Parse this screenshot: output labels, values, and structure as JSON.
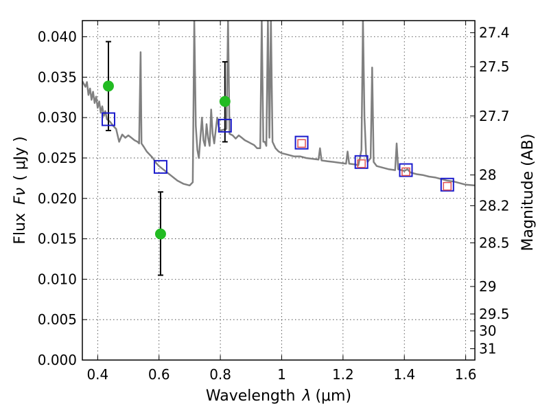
{
  "chart_data": {
    "type": "scatter",
    "title": "",
    "xlabel": "Wavelength",
    "xlabel_symbol": "λ",
    "xlabel_unit": "(μm)",
    "ylabel": "Flux",
    "ylabel_symbol": "Fν",
    "ylabel_unit": "( μJy )",
    "y2label": "Magnitude (AB)",
    "xlim": [
      0.35,
      1.63
    ],
    "ylim": [
      0.0,
      0.042
    ],
    "grid": true,
    "legend": "none",
    "x_ticks": [
      0.4,
      0.6,
      0.8,
      1.0,
      1.2,
      1.4,
      1.6
    ],
    "x_tick_labels": [
      "0.4",
      "0.6",
      "0.8",
      "1",
      "1.2",
      "1.4",
      "1.6"
    ],
    "y_ticks": [
      0.0,
      0.005,
      0.01,
      0.015,
      0.02,
      0.025,
      0.03,
      0.035,
      0.04
    ],
    "y_tick_labels": [
      "0.000",
      "0.005",
      "0.010",
      "0.015",
      "0.020",
      "0.025",
      "0.030",
      "0.035",
      "0.040"
    ],
    "mag_ticks": [
      {
        "label": "27.4",
        "flux": 0.0405
      },
      {
        "label": "27.5",
        "flux": 0.0363
      },
      {
        "label": "27.7",
        "flux": 0.0302
      },
      {
        "label": "28",
        "flux": 0.0229
      },
      {
        "label": "28.2",
        "flux": 0.0191
      },
      {
        "label": "28.5",
        "flux": 0.0145
      },
      {
        "label": "29",
        "flux": 0.0091
      },
      {
        "label": "29.5",
        "flux": 0.0057
      },
      {
        "label": "30",
        "flux": 0.0036
      },
      {
        "label": "31",
        "flux": 0.0014
      }
    ],
    "series": [
      {
        "kind": "line",
        "color": "#808080",
        "points": [
          [
            0.35,
            0.0345
          ],
          [
            0.36,
            0.0338
          ],
          [
            0.365,
            0.0344
          ],
          [
            0.37,
            0.0328
          ],
          [
            0.375,
            0.0336
          ],
          [
            0.38,
            0.0322
          ],
          [
            0.385,
            0.0332
          ],
          [
            0.39,
            0.0318
          ],
          [
            0.395,
            0.0326
          ],
          [
            0.4,
            0.0312
          ],
          [
            0.405,
            0.032
          ],
          [
            0.41,
            0.0306
          ],
          [
            0.415,
            0.0314
          ],
          [
            0.42,
            0.0302
          ],
          [
            0.425,
            0.0308
          ],
          [
            0.43,
            0.0298
          ],
          [
            0.44,
            0.0295
          ],
          [
            0.45,
            0.029
          ],
          [
            0.46,
            0.0286
          ],
          [
            0.47,
            0.027
          ],
          [
            0.48,
            0.0279
          ],
          [
            0.49,
            0.0275
          ],
          [
            0.5,
            0.0278
          ],
          [
            0.51,
            0.0275
          ],
          [
            0.52,
            0.0272
          ],
          [
            0.53,
            0.027
          ],
          [
            0.535,
            0.0268
          ],
          [
            0.54,
            0.0381
          ],
          [
            0.543,
            0.0268
          ],
          [
            0.55,
            0.0264
          ],
          [
            0.56,
            0.0258
          ],
          [
            0.57,
            0.0254
          ],
          [
            0.58,
            0.025
          ],
          [
            0.59,
            0.0244
          ],
          [
            0.6,
            0.024
          ],
          [
            0.62,
            0.0234
          ],
          [
            0.64,
            0.0228
          ],
          [
            0.66,
            0.0222
          ],
          [
            0.68,
            0.0218
          ],
          [
            0.7,
            0.0216
          ],
          [
            0.71,
            0.022
          ],
          [
            0.715,
            0.042
          ],
          [
            0.72,
            0.029
          ],
          [
            0.725,
            0.026
          ],
          [
            0.73,
            0.025
          ],
          [
            0.735,
            0.0275
          ],
          [
            0.74,
            0.03
          ],
          [
            0.745,
            0.0272
          ],
          [
            0.75,
            0.0265
          ],
          [
            0.755,
            0.0292
          ],
          [
            0.76,
            0.0275
          ],
          [
            0.765,
            0.0265
          ],
          [
            0.77,
            0.031
          ],
          [
            0.775,
            0.028
          ],
          [
            0.78,
            0.0268
          ],
          [
            0.785,
            0.0285
          ],
          [
            0.79,
            0.03
          ],
          [
            0.795,
            0.0288
          ],
          [
            0.8,
            0.0284
          ],
          [
            0.81,
            0.0285
          ],
          [
            0.82,
            0.0286
          ],
          [
            0.825,
            0.042
          ],
          [
            0.83,
            0.028
          ],
          [
            0.84,
            0.0278
          ],
          [
            0.85,
            0.0274
          ],
          [
            0.86,
            0.0278
          ],
          [
            0.87,
            0.0275
          ],
          [
            0.88,
            0.0272
          ],
          [
            0.89,
            0.027
          ],
          [
            0.9,
            0.0268
          ],
          [
            0.91,
            0.0266
          ],
          [
            0.92,
            0.0262
          ],
          [
            0.93,
            0.0262
          ],
          [
            0.935,
            0.042
          ],
          [
            0.94,
            0.027
          ],
          [
            0.945,
            0.027
          ],
          [
            0.95,
            0.0265
          ],
          [
            0.955,
            0.042
          ],
          [
            0.96,
            0.0275
          ],
          [
            0.965,
            0.042
          ],
          [
            0.97,
            0.027
          ],
          [
            0.98,
            0.0262
          ],
          [
            0.99,
            0.0258
          ],
          [
            1.0,
            0.0256
          ],
          [
            1.02,
            0.0254
          ],
          [
            1.04,
            0.0252
          ],
          [
            1.06,
            0.0252
          ],
          [
            1.08,
            0.025
          ],
          [
            1.1,
            0.0249
          ],
          [
            1.12,
            0.0248
          ],
          [
            1.125,
            0.0262
          ],
          [
            1.13,
            0.0247
          ],
          [
            1.15,
            0.0246
          ],
          [
            1.17,
            0.0245
          ],
          [
            1.19,
            0.0244
          ],
          [
            1.21,
            0.0243
          ],
          [
            1.215,
            0.0258
          ],
          [
            1.22,
            0.0243
          ],
          [
            1.24,
            0.0242
          ],
          [
            1.25,
            0.0241
          ],
          [
            1.26,
            0.026
          ],
          [
            1.265,
            0.042
          ],
          [
            1.27,
            0.03
          ],
          [
            1.275,
            0.0255
          ],
          [
            1.28,
            0.0245
          ],
          [
            1.29,
            0.025
          ],
          [
            1.295,
            0.0362
          ],
          [
            1.3,
            0.0245
          ],
          [
            1.31,
            0.024
          ],
          [
            1.33,
            0.0238
          ],
          [
            1.35,
            0.0236
          ],
          [
            1.37,
            0.0235
          ],
          [
            1.375,
            0.0268
          ],
          [
            1.38,
            0.0236
          ],
          [
            1.4,
            0.0234
          ],
          [
            1.41,
            0.0236
          ],
          [
            1.42,
            0.0232
          ],
          [
            1.44,
            0.023
          ],
          [
            1.46,
            0.0229
          ],
          [
            1.48,
            0.0227
          ],
          [
            1.5,
            0.0226
          ],
          [
            1.52,
            0.0224
          ],
          [
            1.54,
            0.0222
          ],
          [
            1.56,
            0.0221
          ],
          [
            1.58,
            0.0219
          ],
          [
            1.6,
            0.0217
          ],
          [
            1.63,
            0.0216
          ]
        ]
      },
      {
        "kind": "errorbar",
        "marker": "circle",
        "color": "#22bb22",
        "points": [
          {
            "x": 0.435,
            "y": 0.0339,
            "yerr_low": 0.0284,
            "yerr_high": 0.0394
          },
          {
            "x": 0.605,
            "y": 0.0156,
            "yerr_low": 0.0105,
            "yerr_high": 0.0208
          },
          {
            "x": 0.815,
            "y": 0.032,
            "yerr_low": 0.027,
            "yerr_high": 0.0369
          }
        ]
      },
      {
        "kind": "scatter",
        "marker": "square-open",
        "color": "#1a1acc",
        "points": [
          [
            0.435,
            0.0298
          ],
          [
            0.605,
            0.0239
          ],
          [
            0.815,
            0.029
          ],
          [
            1.065,
            0.0269
          ],
          [
            1.26,
            0.0245
          ],
          [
            1.405,
            0.0235
          ],
          [
            1.54,
            0.0217
          ]
        ]
      },
      {
        "kind": "scatter",
        "marker": "square-open-small",
        "color": "#e05050",
        "points": [
          [
            1.065,
            0.0268
          ],
          [
            1.26,
            0.0243
          ],
          [
            1.405,
            0.0233
          ],
          [
            1.54,
            0.0215
          ]
        ]
      }
    ]
  }
}
